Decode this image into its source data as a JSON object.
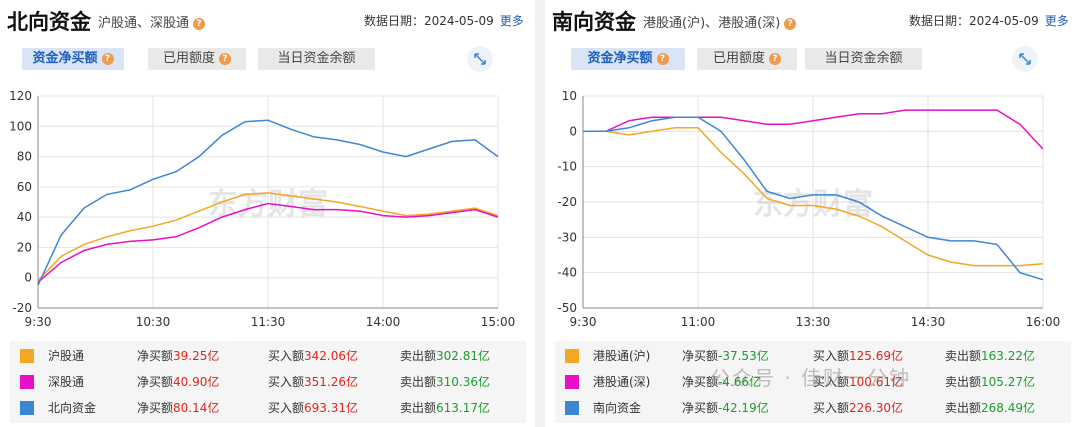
{
  "north": {
    "title": "北向资金",
    "subtitle": "沪股通、深股通",
    "date_label": "数据日期：2024-05-09",
    "more": "更多",
    "tabs": [
      "资金净买额",
      "已用额度",
      "当日资金余额"
    ],
    "legend": [
      {
        "name": "沪股通",
        "net_label": "净买额",
        "net": "39.25亿",
        "buy_label": "买入额",
        "buy": "342.06亿",
        "sell_label": "卖出额",
        "sell": "302.81亿",
        "color": "#f5a623"
      },
      {
        "name": "深股通",
        "net_label": "净买额",
        "net": "40.90亿",
        "buy_label": "买入额",
        "buy": "351.26亿",
        "sell_label": "卖出额",
        "sell": "310.36亿",
        "color": "#e80fc8"
      },
      {
        "name": "北向资金",
        "net_label": "净买额",
        "net": "80.14亿",
        "buy_label": "买入额",
        "buy": "693.31亿",
        "sell_label": "卖出额",
        "sell": "613.17亿",
        "color": "#3c86d6"
      }
    ]
  },
  "south": {
    "title": "南向资金",
    "subtitle": "港股通(沪)、港股通(深)",
    "date_label": "数据日期：2024-05-09",
    "more": "更多",
    "tabs": [
      "资金净买额",
      "已用额度",
      "当日资金余额"
    ],
    "legend": [
      {
        "name": "港股通(沪)",
        "net_label": "净买额",
        "net": "-37.53亿",
        "buy_label": "买入额",
        "buy": "125.69亿",
        "sell_label": "卖出额",
        "sell": "163.22亿",
        "color": "#f5a623"
      },
      {
        "name": "港股通(深)",
        "net_label": "净买额",
        "net": "-4.66亿",
        "buy_label": "买入额",
        "buy": "100.61亿",
        "sell_label": "卖出额",
        "sell": "105.27亿",
        "color": "#e80fc8"
      },
      {
        "name": "南向资金",
        "net_label": "净买额",
        "net": "-42.19亿",
        "buy_label": "买入额",
        "buy": "226.30亿",
        "sell_label": "卖出额",
        "sell": "268.49亿",
        "color": "#3c86d6"
      }
    ]
  },
  "watermark": "东方财富",
  "overlay_watermark": "公众号 · 佳财一分钟",
  "chart_data": [
    {
      "type": "line",
      "x_ticks": [
        "9:30",
        "10:30",
        "11:30",
        "14:00",
        "15:00"
      ],
      "ylim": [
        -20,
        120
      ],
      "y_ticks": [
        -20,
        0,
        20,
        40,
        60,
        80,
        100,
        120
      ],
      "grid": true,
      "x": [
        0,
        0.05,
        0.1,
        0.15,
        0.2,
        0.25,
        0.3,
        0.35,
        0.4,
        0.45,
        0.5,
        0.55,
        0.6,
        0.65,
        0.7,
        0.75,
        0.8,
        0.85,
        0.9,
        0.95,
        1.0
      ],
      "series": [
        {
          "name": "沪股通",
          "color": "#f5a623",
          "values": [
            -2,
            14,
            22,
            27,
            31,
            34,
            38,
            44,
            50,
            55,
            56,
            54,
            52,
            50,
            47,
            44,
            41,
            42,
            44,
            46,
            41
          ]
        },
        {
          "name": "深股通",
          "color": "#e80fc8",
          "values": [
            -3,
            10,
            18,
            22,
            24,
            25,
            27,
            33,
            40,
            45,
            49,
            47,
            45,
            45,
            44,
            41,
            40,
            41,
            43,
            45,
            40
          ]
        },
        {
          "name": "北向资金",
          "color": "#3c86d6",
          "values": [
            -5,
            28,
            46,
            55,
            58,
            65,
            70,
            80,
            94,
            103,
            104,
            98,
            93,
            91,
            88,
            83,
            80,
            85,
            90,
            91,
            80
          ]
        }
      ]
    },
    {
      "type": "line",
      "x_ticks": [
        "9:30",
        "11:00",
        "13:30",
        "14:30",
        "16:00"
      ],
      "ylim": [
        -50,
        10
      ],
      "y_ticks": [
        -50,
        -40,
        -30,
        -20,
        -10,
        0,
        10
      ],
      "grid": true,
      "x": [
        0,
        0.05,
        0.1,
        0.15,
        0.2,
        0.25,
        0.3,
        0.35,
        0.4,
        0.45,
        0.5,
        0.55,
        0.6,
        0.65,
        0.7,
        0.75,
        0.8,
        0.85,
        0.9,
        0.95,
        1.0
      ],
      "series": [
        {
          "name": "港股通(沪)",
          "color": "#f5a623",
          "values": [
            0,
            0,
            -1,
            0,
            1,
            1,
            -6,
            -12,
            -19,
            -21,
            -21,
            -22,
            -24,
            -27,
            -31,
            -35,
            -37,
            -38,
            -38,
            -38,
            -37.5
          ]
        },
        {
          "name": "港股通(深)",
          "color": "#e80fc8",
          "values": [
            0,
            0,
            3,
            4,
            4,
            4,
            4,
            3,
            2,
            2,
            3,
            4,
            5,
            5,
            6,
            6,
            6,
            6,
            6,
            2,
            -5
          ]
        },
        {
          "name": "南向资金",
          "color": "#3c86d6",
          "values": [
            0,
            0,
            1,
            3,
            4,
            4,
            0,
            -8,
            -17,
            -19,
            -18,
            -18,
            -20,
            -24,
            -27,
            -30,
            -31,
            -31,
            -32,
            -40,
            -42
          ]
        }
      ]
    }
  ]
}
